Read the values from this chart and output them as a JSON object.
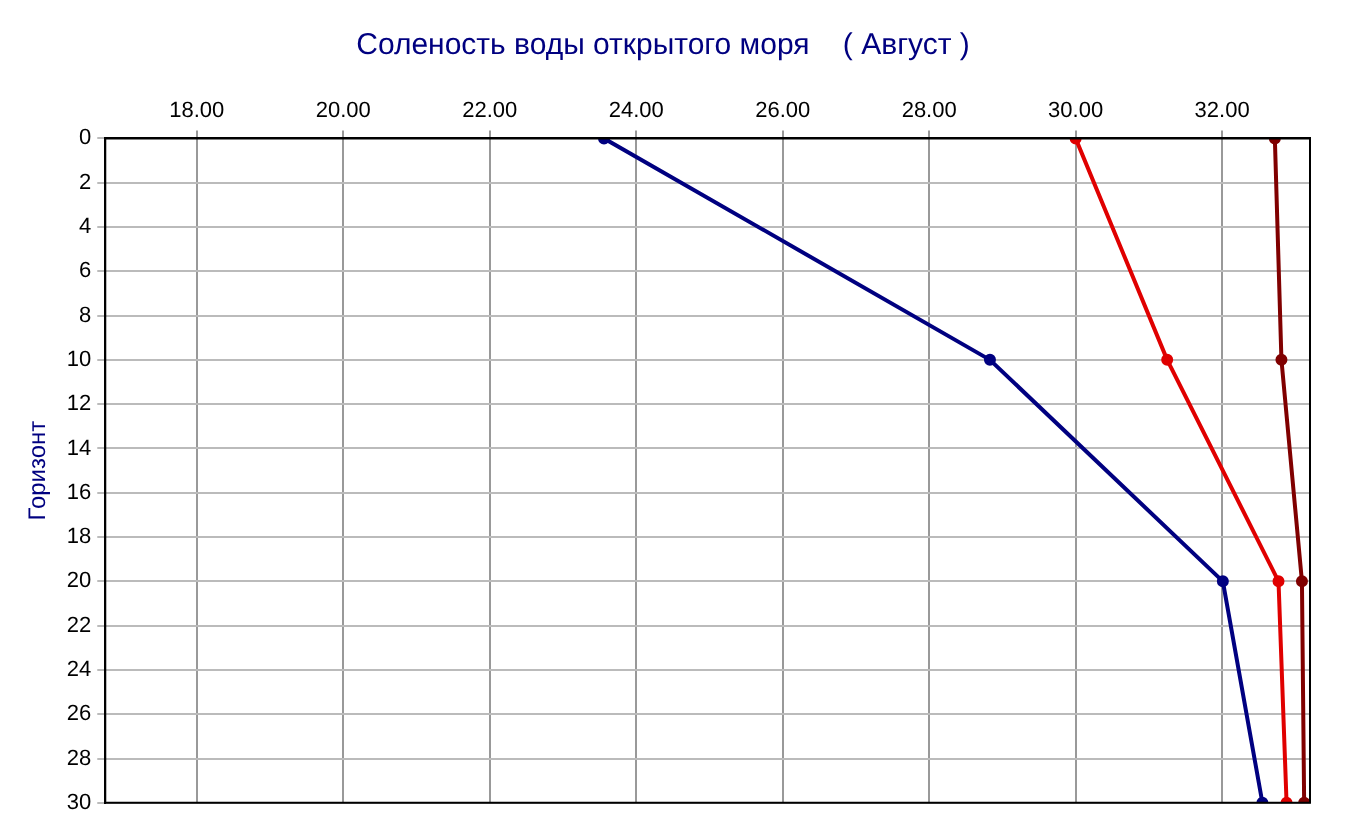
{
  "chart_data": {
    "type": "line",
    "title": "Соленость воды открытого моря    ( Август )",
    "ylabel": "Горизонт",
    "series": [
      {
        "color": "#000080",
        "x": [
          23.56,
          28.83,
          32.01,
          32.55
        ],
        "values": [
          0,
          10,
          20,
          30
        ]
      },
      {
        "color": "#e00000",
        "x": [
          30.0,
          31.25,
          32.77,
          32.88
        ],
        "values": [
          0,
          10,
          20,
          30
        ]
      },
      {
        "color": "#800000",
        "x": [
          32.72,
          32.81,
          33.09,
          33.12
        ],
        "values": [
          0,
          10,
          20,
          30
        ]
      }
    ],
    "xlim": [
      16.75,
      33.2
    ],
    "xticks": [
      {
        "value": 18,
        "label": "18.00"
      },
      {
        "value": 20,
        "label": "20.00"
      },
      {
        "value": 22,
        "label": "22.00"
      },
      {
        "value": 24,
        "label": "24.00"
      },
      {
        "value": 26,
        "label": "26.00"
      },
      {
        "value": 28,
        "label": "28.00"
      },
      {
        "value": 30,
        "label": "30.00"
      },
      {
        "value": 32,
        "label": "32.00"
      }
    ],
    "ylim": [
      30,
      0
    ],
    "yticks": [
      0,
      2,
      4,
      6,
      8,
      10,
      12,
      14,
      16,
      18,
      20,
      22,
      24,
      26,
      28,
      30
    ],
    "grid": true,
    "legend": false,
    "marker": "circle",
    "line_style": "solid"
  }
}
